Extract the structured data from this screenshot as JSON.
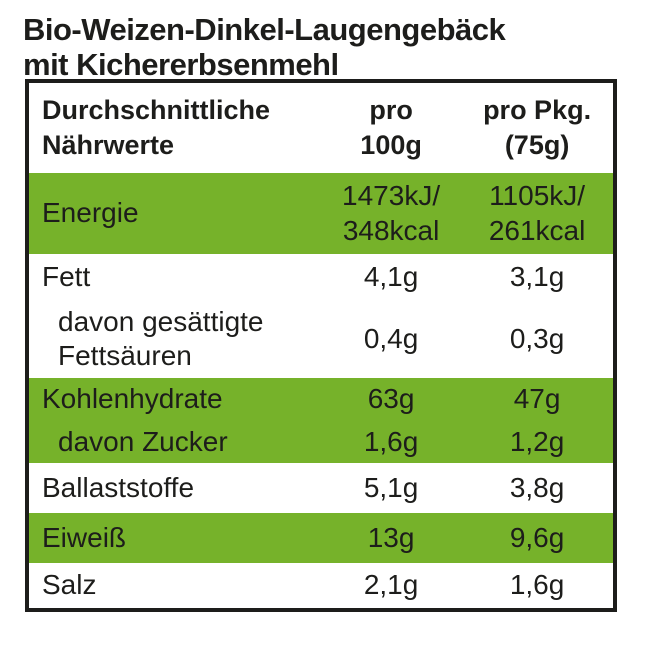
{
  "title": "Bio-Weizen-Dinkel-Laugengebäck\nmit Kichererbsenmehl",
  "colors": {
    "row_green": "#76b22a",
    "text": "#1d1d1b",
    "border": "#1d1d1b",
    "background": "#ffffff"
  },
  "table": {
    "header": {
      "col1": "Durchschnittliche\nNährwerte",
      "col2": "pro\n100g",
      "col3": "pro Pkg.\n(75g)"
    },
    "rows": [
      {
        "label": "Energie",
        "per_100g": "1473kJ/\n348kcal",
        "per_pkg": "1105kJ/\n261kcal",
        "green": "true",
        "indent": "false"
      },
      {
        "label": "Fett",
        "per_100g": "4,1g",
        "per_pkg": "3,1g",
        "green": "false",
        "indent": "false"
      },
      {
        "label": "davon gesättigte\nFettsäuren",
        "per_100g": "0,4g",
        "per_pkg": "0,3g",
        "green": "false",
        "indent": "true"
      },
      {
        "label": "Kohlenhydrate",
        "per_100g": "63g",
        "per_pkg": "47g",
        "green": "true",
        "indent": "false"
      },
      {
        "label": "davon Zucker",
        "per_100g": "1,6g",
        "per_pkg": "1,2g",
        "green": "true",
        "indent": "true"
      },
      {
        "label": "Ballaststoffe",
        "per_100g": "5,1g",
        "per_pkg": "3,8g",
        "green": "false",
        "indent": "false"
      },
      {
        "label": "Eiweiß",
        "per_100g": "13g",
        "per_pkg": "9,6g",
        "green": "true",
        "indent": "false"
      },
      {
        "label": "Salz",
        "per_100g": "2,1g",
        "per_pkg": "1,6g",
        "green": "false",
        "indent": "false"
      }
    ]
  }
}
